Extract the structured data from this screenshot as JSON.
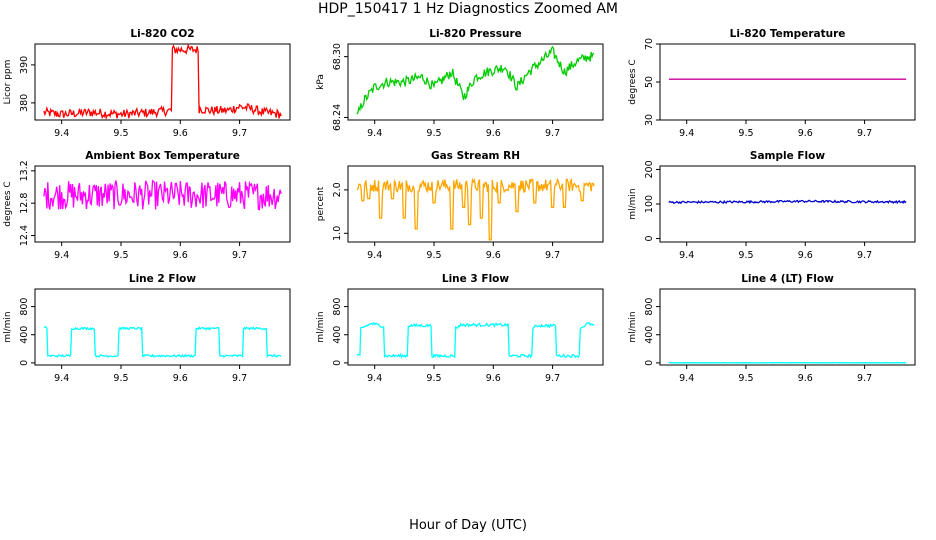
{
  "main_title": "HDP_150417  1 Hz Diagnostics Zoomed AM",
  "outer_xlabel": "Hour of Day (UTC)",
  "chart_data": [
    {
      "type": "line",
      "title": "Li-820 CO2",
      "ylabel": "Licor ppm",
      "color": "#ff0000",
      "xlim": [
        9.355,
        9.785
      ],
      "ylim": [
        375.5,
        395.5
      ],
      "xticks": [
        "9.4",
        "9.5",
        "9.6",
        "9.7"
      ],
      "yticks": [
        "380",
        "390"
      ],
      "series": [
        {
          "x": [
            9.37,
            9.4,
            9.45,
            9.5,
            9.55,
            9.585,
            9.586,
            9.6,
            9.63,
            9.631,
            9.65,
            9.68,
            9.7,
            9.72,
            9.74,
            9.77
          ],
          "y": [
            377.5,
            377.0,
            377.5,
            377.0,
            377.5,
            378.0,
            394.0,
            394.0,
            394.0,
            378.5,
            378.0,
            378.0,
            379.0,
            378.5,
            377.5,
            377.0
          ]
        }
      ],
      "noise": 1.2
    },
    {
      "type": "line",
      "title": "Li-820 Pressure",
      "ylabel": "kPa",
      "color": "#00cc00",
      "xlim": [
        9.355,
        9.785
      ],
      "ylim": [
        68.2375,
        68.3125
      ],
      "xticks": [
        "9.4",
        "9.5",
        "9.6",
        "9.7"
      ],
      "yticks": [
        "68.24",
        "68.30"
      ],
      "series": [
        {
          "x": [
            9.37,
            9.38,
            9.4,
            9.42,
            9.45,
            9.48,
            9.5,
            9.53,
            9.55,
            9.57,
            9.59,
            9.62,
            9.64,
            9.66,
            9.68,
            9.7,
            9.72,
            9.74,
            9.76,
            9.77
          ],
          "y": [
            68.24,
            68.255,
            68.27,
            68.275,
            68.275,
            68.28,
            68.27,
            68.285,
            68.26,
            68.28,
            68.285,
            68.29,
            68.27,
            68.285,
            68.295,
            68.305,
            68.285,
            68.295,
            68.3,
            68.3
          ]
        }
      ],
      "noise": 0.005
    },
    {
      "type": "line",
      "title": "Li-820 Temperature",
      "ylabel": "degrees C",
      "color": "#cc0099",
      "xlim": [
        9.355,
        9.785
      ],
      "ylim": [
        30,
        70
      ],
      "xticks": [
        "9.4",
        "9.5",
        "9.6",
        "9.7"
      ],
      "yticks": [
        "30",
        "50",
        "70"
      ],
      "series": [
        {
          "x": [
            9.37,
            9.77
          ],
          "y": [
            51.5,
            51.5
          ]
        }
      ],
      "noise": 0
    },
    {
      "type": "line",
      "title": "Ambient Box Temperature",
      "ylabel": "degrees C",
      "color": "#ff00ff",
      "xlim": [
        9.355,
        9.785
      ],
      "ylim": [
        12.32,
        13.26
      ],
      "xticks": [
        "9.4",
        "9.5",
        "9.6",
        "9.7"
      ],
      "yticks": [
        "12.4",
        "12.8",
        "13.2"
      ],
      "series": [
        {
          "x": [
            9.37,
            9.77
          ],
          "y": [
            12.9,
            12.9
          ]
        }
      ],
      "noise": 0.18
    },
    {
      "type": "line",
      "title": "Gas Stream RH",
      "ylabel": "percent",
      "color": "#ffa500",
      "xlim": [
        9.355,
        9.785
      ],
      "ylim": [
        0.8,
        2.55
      ],
      "xticks": [
        "9.4",
        "9.5",
        "9.6",
        "9.7"
      ],
      "yticks": [
        "1.0",
        "2.0"
      ],
      "series": [
        {
          "x": [
            9.37,
            9.77
          ],
          "y": [
            2.1,
            2.1
          ]
        }
      ],
      "noise": 0.15,
      "dips": [
        {
          "x": 9.38,
          "y": 1.75
        },
        {
          "x": 9.39,
          "y": 1.8
        },
        {
          "x": 9.41,
          "y": 1.35
        },
        {
          "x": 9.43,
          "y": 1.8
        },
        {
          "x": 9.45,
          "y": 1.35
        },
        {
          "x": 9.47,
          "y": 1.1
        },
        {
          "x": 9.5,
          "y": 1.7
        },
        {
          "x": 9.53,
          "y": 1.1
        },
        {
          "x": 9.55,
          "y": 1.6
        },
        {
          "x": 9.56,
          "y": 1.2
        },
        {
          "x": 9.58,
          "y": 1.35
        },
        {
          "x": 9.595,
          "y": 0.85
        },
        {
          "x": 9.61,
          "y": 1.7
        },
        {
          "x": 9.64,
          "y": 1.5
        },
        {
          "x": 9.67,
          "y": 1.7
        },
        {
          "x": 9.7,
          "y": 1.6
        },
        {
          "x": 9.72,
          "y": 1.6
        },
        {
          "x": 9.75,
          "y": 1.75
        }
      ]
    },
    {
      "type": "line",
      "title": "Sample Flow",
      "ylabel": "ml/min",
      "color": "#0000cc",
      "xlim": [
        9.355,
        9.785
      ],
      "ylim": [
        -10,
        210
      ],
      "xticks": [
        "9.4",
        "9.5",
        "9.6",
        "9.7"
      ],
      "yticks": [
        "0",
        "100",
        "200"
      ],
      "series": [
        {
          "x": [
            9.37,
            9.5,
            9.6,
            9.65,
            9.77
          ],
          "y": [
            105,
            106,
            108,
            107,
            106
          ]
        }
      ],
      "noise": 3
    },
    {
      "type": "line",
      "title": "Line 2 Flow",
      "ylabel": "ml/min",
      "color": "#00ffff",
      "xlim": [
        9.355,
        9.785
      ],
      "ylim": [
        -30,
        1050
      ],
      "xticks": [
        "9.4",
        "9.5",
        "9.6",
        "9.7"
      ],
      "yticks": [
        "0",
        "400",
        "800"
      ],
      "series": [
        {
          "x": [
            9.37,
            9.375,
            9.376,
            9.415,
            9.416,
            9.455,
            9.456,
            9.495,
            9.496,
            9.535,
            9.536,
            9.625,
            9.626,
            9.665,
            9.666,
            9.705,
            9.706,
            9.745,
            9.746,
            9.77
          ],
          "y": [
            500,
            500,
            100,
            100,
            490,
            490,
            100,
            100,
            490,
            490,
            100,
            100,
            490,
            490,
            100,
            100,
            490,
            490,
            100,
            100
          ]
        }
      ],
      "noise": 15
    },
    {
      "type": "line",
      "title": "Line 3 Flow",
      "ylabel": "ml/min",
      "color": "#00ffff",
      "xlim": [
        9.355,
        9.785
      ],
      "ylim": [
        -30,
        1050
      ],
      "xticks": [
        "9.4",
        "9.5",
        "9.6",
        "9.7"
      ],
      "yticks": [
        "0",
        "400",
        "800"
      ],
      "series": [
        {
          "x": [
            9.37,
            9.375,
            9.376,
            9.395,
            9.415,
            9.416,
            9.455,
            9.456,
            9.495,
            9.496,
            9.535,
            9.536,
            9.545,
            9.625,
            9.626,
            9.665,
            9.666,
            9.675,
            9.705,
            9.706,
            9.745,
            9.746,
            9.76,
            9.77
          ],
          "y": [
            100,
            100,
            490,
            560,
            520,
            100,
            100,
            530,
            530,
            100,
            100,
            490,
            540,
            540,
            100,
            100,
            490,
            530,
            530,
            100,
            100,
            490,
            560,
            530
          ]
        }
      ],
      "noise": 20
    },
    {
      "type": "line",
      "title": "Line 4 (LT) Flow",
      "ylabel": "ml/min",
      "color": "#00ffff",
      "xlim": [
        9.355,
        9.785
      ],
      "ylim": [
        -30,
        1050
      ],
      "xticks": [
        "9.4",
        "9.5",
        "9.6",
        "9.7"
      ],
      "yticks": [
        "0",
        "400",
        "800"
      ],
      "series": [
        {
          "x": [
            9.37,
            9.77
          ],
          "y": [
            2,
            2
          ]
        }
      ],
      "noise": 2
    }
  ]
}
